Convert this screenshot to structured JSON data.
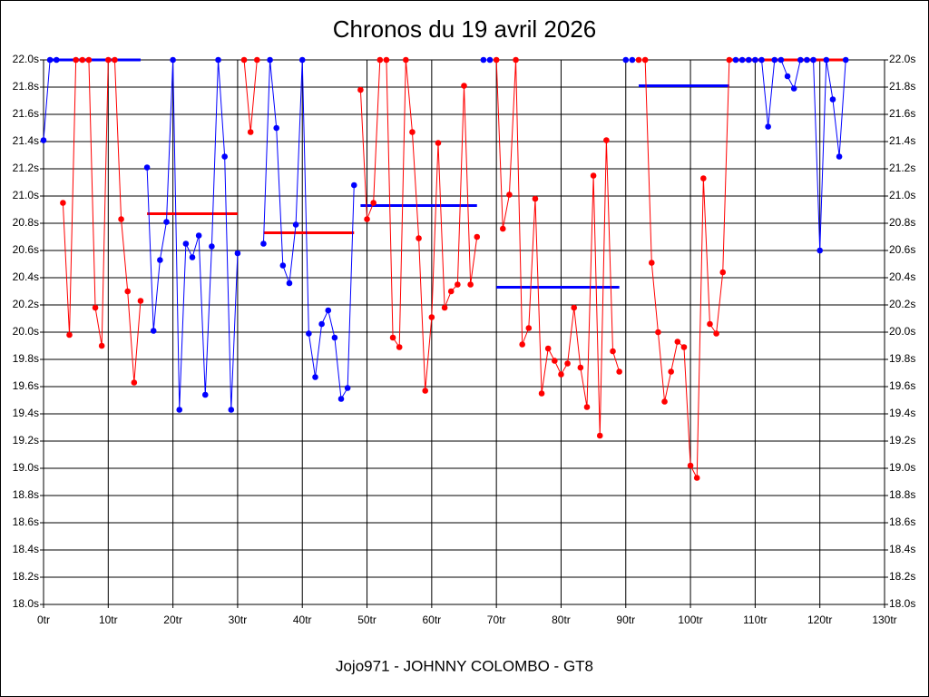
{
  "chart_data": {
    "type": "line",
    "title": "Chronos du 19 avril 2026",
    "subtitle": "Jojo971 - JOHNNY COLOMBO - GT8",
    "grid": true,
    "xlim": [
      0,
      130
    ],
    "xticks": [
      {
        "value": 0,
        "label": "0tr"
      },
      {
        "value": 10,
        "label": "10tr"
      },
      {
        "value": 20,
        "label": "20tr"
      },
      {
        "value": 30,
        "label": "30tr"
      },
      {
        "value": 40,
        "label": "40tr"
      },
      {
        "value": 50,
        "label": "50tr"
      },
      {
        "value": 60,
        "label": "60tr"
      },
      {
        "value": 70,
        "label": "70tr"
      },
      {
        "value": 80,
        "label": "80tr"
      },
      {
        "value": 90,
        "label": "90tr"
      },
      {
        "value": 100,
        "label": "100tr"
      },
      {
        "value": 110,
        "label": "110tr"
      },
      {
        "value": 120,
        "label": "120tr"
      },
      {
        "value": 130,
        "label": "130tr"
      }
    ],
    "ylim": [
      18.0,
      22.0
    ],
    "yticks": [
      {
        "value": 18.0,
        "label": "18.0s"
      },
      {
        "value": 18.2,
        "label": "18.2s"
      },
      {
        "value": 18.4,
        "label": "18.4s"
      },
      {
        "value": 18.6,
        "label": "18.6s"
      },
      {
        "value": 18.8,
        "label": "18.8s"
      },
      {
        "value": 19.0,
        "label": "19.0s"
      },
      {
        "value": 19.2,
        "label": "19.2s"
      },
      {
        "value": 19.4,
        "label": "19.4s"
      },
      {
        "value": 19.6,
        "label": "19.6s"
      },
      {
        "value": 19.8,
        "label": "19.8s"
      },
      {
        "value": 20.0,
        "label": "20.0s"
      },
      {
        "value": 20.2,
        "label": "20.2s"
      },
      {
        "value": 20.4,
        "label": "20.4s"
      },
      {
        "value": 20.6,
        "label": "20.6s"
      },
      {
        "value": 20.8,
        "label": "20.8s"
      },
      {
        "value": 21.0,
        "label": "21.0s"
      },
      {
        "value": 21.2,
        "label": "21.2s"
      },
      {
        "value": 21.4,
        "label": "21.4s"
      },
      {
        "value": 21.6,
        "label": "21.6s"
      },
      {
        "value": 21.8,
        "label": "21.8s"
      },
      {
        "value": 22.0,
        "label": "22.0s"
      }
    ],
    "series": [
      {
        "color": "#0000ff",
        "x": [
          0,
          1,
          2
        ],
        "values": [
          21.41,
          22.0,
          22.0
        ]
      },
      {
        "color": "#ff0000",
        "x": [
          3,
          4,
          5,
          6,
          7,
          8,
          9,
          10,
          11,
          12,
          13,
          14,
          15
        ],
        "values": [
          20.95,
          19.98,
          22.0,
          22.0,
          22.0,
          20.18,
          19.9,
          22.0,
          22.0,
          20.83,
          20.3,
          19.63,
          20.23
        ]
      },
      {
        "color": "#0000ff",
        "x": [
          16,
          17,
          18,
          19,
          20,
          21,
          22,
          23,
          24,
          25,
          26,
          27,
          28,
          29,
          30
        ],
        "values": [
          21.21,
          20.01,
          20.53,
          20.81,
          22.0,
          19.43,
          20.65,
          20.55,
          20.71,
          19.54,
          20.63,
          22.0,
          21.29,
          19.43,
          20.58
        ]
      },
      {
        "color": "#ff0000",
        "x": [
          31,
          32,
          33
        ],
        "values": [
          22.0,
          21.47,
          22.0
        ]
      },
      {
        "color": "#0000ff",
        "x": [
          34,
          35,
          36,
          37,
          38,
          39,
          40,
          41,
          42,
          43,
          44,
          45,
          46,
          47,
          48
        ],
        "values": [
          20.65,
          22.0,
          21.5,
          20.49,
          20.36,
          20.79,
          22.0,
          19.99,
          19.67,
          20.06,
          20.16,
          19.96,
          19.51,
          19.59,
          21.08
        ]
      },
      {
        "color": "#ff0000",
        "x": [
          49,
          50,
          51,
          52,
          53,
          54,
          55,
          56,
          57,
          58,
          59,
          60,
          61,
          62,
          63,
          64,
          65,
          66,
          67
        ],
        "values": [
          21.78,
          20.83,
          20.95,
          22.0,
          22.0,
          19.96,
          19.89,
          22.0,
          21.47,
          20.69,
          19.57,
          20.11,
          21.39,
          20.18,
          20.3,
          20.35,
          21.81,
          20.35,
          20.7
        ]
      },
      {
        "color": "#0000ff",
        "x": [
          68,
          69
        ],
        "values": [
          22.0,
          22.0
        ]
      },
      {
        "color": "#ff0000",
        "x": [
          70,
          71,
          72,
          73,
          74,
          75,
          76,
          77,
          78,
          79,
          80,
          81,
          82,
          83,
          84,
          85,
          86,
          87,
          88,
          89
        ],
        "values": [
          22.0,
          20.76,
          21.01,
          22.0,
          19.91,
          20.03,
          20.98,
          19.55,
          19.88,
          19.79,
          19.69,
          19.77,
          20.18,
          19.74,
          19.45,
          21.15,
          19.24,
          21.41,
          19.86,
          19.71
        ]
      },
      {
        "color": "#0000ff",
        "x": [
          90,
          91
        ],
        "values": [
          22.0,
          22.0
        ]
      },
      {
        "color": "#ff0000",
        "x": [
          92,
          93,
          94,
          95,
          96,
          97,
          98,
          99,
          100,
          101,
          102,
          103,
          104,
          105,
          106
        ],
        "values": [
          22.0,
          22.0,
          20.51,
          20.0,
          19.49,
          19.71,
          19.93,
          19.89,
          19.02,
          18.93,
          21.13,
          20.06,
          19.99,
          20.44,
          22.0
        ]
      },
      {
        "color": "#0000ff",
        "x": [
          107,
          108,
          109,
          110,
          111,
          112,
          113,
          114,
          115,
          116,
          117,
          118,
          119,
          120,
          121,
          122,
          123,
          124
        ],
        "values": [
          22.0,
          22.0,
          22.0,
          22.0,
          22.0,
          21.51,
          22.0,
          22.0,
          21.88,
          21.79,
          22.0,
          22.0,
          22.0,
          20.6,
          22.0,
          21.71,
          21.29,
          22.0
        ]
      }
    ],
    "averages": [
      {
        "color": "#0000ff",
        "x": [
          1,
          15
        ],
        "value": 22.0
      },
      {
        "color": "#ff0000",
        "x": [
          16,
          30
        ],
        "value": 20.87
      },
      {
        "color": "#ff0000",
        "x": [
          34,
          48
        ],
        "value": 20.73
      },
      {
        "color": "#0000ff",
        "x": [
          49,
          67
        ],
        "value": 20.93
      },
      {
        "color": "#0000ff",
        "x": [
          70,
          89
        ],
        "value": 20.33
      },
      {
        "color": "#0000ff",
        "x": [
          92,
          106
        ],
        "value": 21.81
      },
      {
        "color": "#ff0000",
        "x": [
          106,
          124
        ],
        "value": 22.0
      }
    ]
  }
}
